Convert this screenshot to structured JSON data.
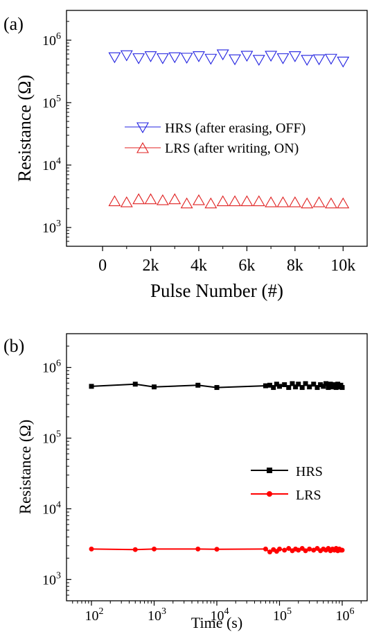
{
  "chart_data": [
    {
      "panel": "(a)",
      "type": "scatter",
      "xlabel": "Pulse Number (#)",
      "ylabel": "Resistance (Ω)",
      "x_scale": "linear",
      "y_scale": "log",
      "xlim": [
        -1500,
        11000
      ],
      "ylim": [
        500,
        3000000
      ],
      "x_ticks": [
        0,
        2000,
        4000,
        6000,
        8000,
        10000
      ],
      "x_tick_labels": [
        "0",
        "2k",
        "4k",
        "6k",
        "8k",
        "10k"
      ],
      "y_ticks": [
        1000,
        10000,
        100000,
        1000000
      ],
      "y_tick_labels": [
        {
          "base": "10",
          "exp": "3"
        },
        {
          "base": "10",
          "exp": "4"
        },
        {
          "base": "10",
          "exp": "5"
        },
        {
          "base": "10",
          "exp": "6"
        }
      ],
      "legend_position": "center-right",
      "series": [
        {
          "name": "HRS (after erasing, OFF)",
          "color": "#2020e0",
          "marker": "triangle-down-open",
          "line": false,
          "x": [
            500,
            1000,
            1500,
            2000,
            2500,
            3000,
            3500,
            4000,
            4500,
            5000,
            5500,
            6000,
            6500,
            7000,
            7500,
            8000,
            8500,
            9000,
            9500,
            10000
          ],
          "y": [
            540000,
            580000,
            520000,
            560000,
            520000,
            540000,
            530000,
            560000,
            510000,
            600000,
            500000,
            570000,
            490000,
            570000,
            520000,
            560000,
            490000,
            500000,
            510000,
            460000
          ]
        },
        {
          "name": "LRS (after writing, ON)",
          "color": "#e02020",
          "marker": "triangle-up-open",
          "line": false,
          "x": [
            500,
            1000,
            1500,
            2000,
            2500,
            3000,
            3500,
            4000,
            4500,
            5000,
            5500,
            6000,
            6500,
            7000,
            7500,
            8000,
            8500,
            9000,
            9500,
            10000
          ],
          "y": [
            2600,
            2500,
            2800,
            2800,
            2700,
            2800,
            2400,
            2700,
            2400,
            2600,
            2600,
            2600,
            2600,
            2500,
            2500,
            2500,
            2400,
            2500,
            2400,
            2400
          ]
        }
      ]
    },
    {
      "panel": "(b)",
      "type": "line",
      "xlabel": "Time (s)",
      "ylabel": "Resistance (Ω)",
      "x_scale": "log",
      "y_scale": "log",
      "xlim": [
        40,
        2500000
      ],
      "ylim": [
        500,
        3000000
      ],
      "x_ticks": [
        100,
        1000,
        10000,
        100000,
        1000000
      ],
      "x_tick_labels": [
        {
          "base": "10",
          "exp": "2"
        },
        {
          "base": "10",
          "exp": "3"
        },
        {
          "base": "10",
          "exp": "4"
        },
        {
          "base": "10",
          "exp": "5"
        },
        {
          "base": "10",
          "exp": "6"
        }
      ],
      "y_ticks": [
        1000,
        10000,
        100000,
        1000000
      ],
      "y_tick_labels": [
        {
          "base": "10",
          "exp": "3"
        },
        {
          "base": "10",
          "exp": "4"
        },
        {
          "base": "10",
          "exp": "5"
        },
        {
          "base": "10",
          "exp": "6"
        }
      ],
      "legend_position": "center-right",
      "series": [
        {
          "name": "HRS",
          "color": "#000000",
          "marker": "square-filled",
          "line": true,
          "x": [
            100,
            500,
            1000,
            5000,
            10000,
            60000,
            70000,
            80000,
            90000,
            100000,
            120000,
            140000,
            160000,
            180000,
            200000,
            230000,
            260000,
            300000,
            350000,
            400000,
            450000,
            500000,
            550000,
            600000,
            650000,
            700000,
            750000,
            800000,
            850000,
            900000,
            950000,
            1000000
          ],
          "y": [
            540000,
            580000,
            530000,
            560000,
            520000,
            550000,
            560000,
            520000,
            580000,
            540000,
            570000,
            520000,
            590000,
            530000,
            580000,
            520000,
            590000,
            530000,
            580000,
            520000,
            570000,
            540000,
            590000,
            520000,
            580000,
            530000,
            570000,
            520000,
            580000,
            530000,
            560000,
            520000
          ]
        },
        {
          "name": "LRS",
          "color": "#ff0000",
          "marker": "circle-filled",
          "line": true,
          "x": [
            100,
            500,
            1000,
            5000,
            10000,
            60000,
            70000,
            80000,
            90000,
            100000,
            120000,
            140000,
            160000,
            180000,
            200000,
            230000,
            260000,
            300000,
            350000,
            400000,
            450000,
            500000,
            550000,
            600000,
            650000,
            700000,
            750000,
            800000,
            850000,
            900000,
            950000,
            1000000
          ],
          "y": [
            2700,
            2650,
            2700,
            2700,
            2680,
            2700,
            2450,
            2650,
            2500,
            2700,
            2600,
            2750,
            2550,
            2700,
            2600,
            2750,
            2550,
            2700,
            2600,
            2750,
            2550,
            2700,
            2600,
            2750,
            2550,
            2700,
            2600,
            2750,
            2550,
            2700,
            2600,
            2600
          ]
        }
      ]
    }
  ]
}
